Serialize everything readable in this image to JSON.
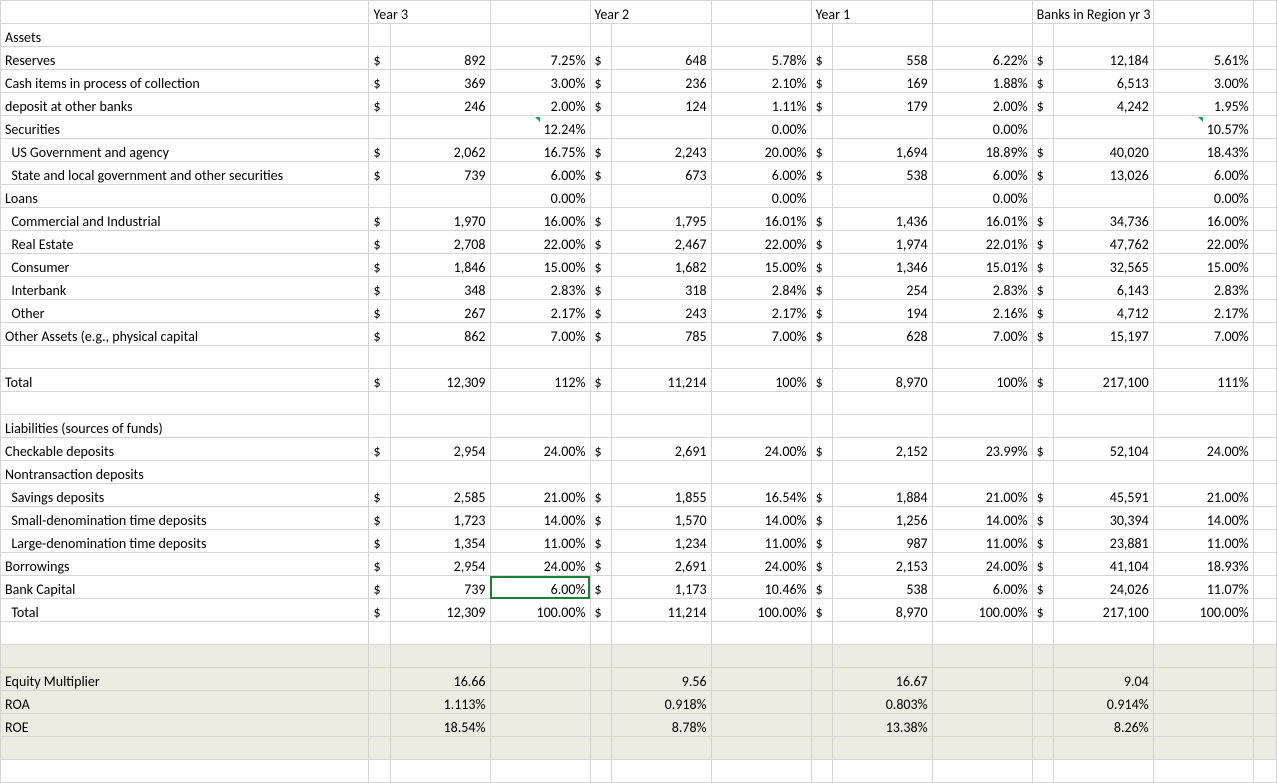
{
  "headers": {
    "year3": "Year 3",
    "year2": "Year 2",
    "year1": "Year 1",
    "region": "Banks in Region yr 3"
  },
  "rows": [
    {
      "label": "Assets",
      "type": "header"
    },
    {
      "label": "Reserves",
      "indent": 0,
      "y3": {
        "c": "$",
        "v": "892",
        "p": "7.25%"
      },
      "y2": {
        "c": "$",
        "v": "648",
        "p": "5.78%"
      },
      "y1": {
        "c": "$",
        "v": "558",
        "p": "6.22%"
      },
      "rg": {
        "c": "$",
        "v": "12,184",
        "p": "5.61%"
      }
    },
    {
      "label": "Cash items in process of collection",
      "indent": 0,
      "y3": {
        "c": "$",
        "v": "369",
        "p": "3.00%"
      },
      "y2": {
        "c": "$",
        "v": "236",
        "p": "2.10%"
      },
      "y1": {
        "c": "$",
        "v": "169",
        "p": "1.88%"
      },
      "rg": {
        "c": "$",
        "v": "6,513",
        "p": "3.00%"
      }
    },
    {
      "label": "deposit at other banks",
      "indent": 0,
      "y3": {
        "c": "$",
        "v": "246",
        "p": "2.00%"
      },
      "y2": {
        "c": "$",
        "v": "124",
        "p": "1.11%"
      },
      "y1": {
        "c": "$",
        "v": "179",
        "p": "2.00%"
      },
      "rg": {
        "c": "$",
        "v": "4,242",
        "p": "1.95%"
      }
    },
    {
      "label": "Securities",
      "indent": 0,
      "y3": {
        "p": "12.24%",
        "tri": true
      },
      "y2": {
        "p": "0.00%"
      },
      "y1": {
        "p": "0.00%"
      },
      "rg": {
        "p": "10.57%",
        "tri": true
      }
    },
    {
      "label": "US Government and agency",
      "indent": 1,
      "y3": {
        "c": "$",
        "v": "2,062",
        "p": "16.75%"
      },
      "y2": {
        "c": "$",
        "v": "2,243",
        "p": "20.00%"
      },
      "y1": {
        "c": "$",
        "v": "1,694",
        "p": "18.89%"
      },
      "rg": {
        "c": "$",
        "v": "40,020",
        "p": "18.43%"
      }
    },
    {
      "label": "State and local government and other securities",
      "indent": 1,
      "y3": {
        "c": "$",
        "v": "739",
        "p": "6.00%"
      },
      "y2": {
        "c": "$",
        "v": "673",
        "p": "6.00%"
      },
      "y1": {
        "c": "$",
        "v": "538",
        "p": "6.00%"
      },
      "rg": {
        "c": "$",
        "v": "13,026",
        "p": "6.00%"
      }
    },
    {
      "label": "Loans",
      "indent": 0,
      "y3": {
        "p": "0.00%"
      },
      "y2": {
        "p": "0.00%"
      },
      "y1": {
        "p": "0.00%"
      },
      "rg": {
        "p": "0.00%"
      }
    },
    {
      "label": "Commercial and Industrial",
      "indent": 1,
      "y3": {
        "c": "$",
        "v": "1,970",
        "p": "16.00%"
      },
      "y2": {
        "c": "$",
        "v": "1,795",
        "p": "16.01%"
      },
      "y1": {
        "c": "$",
        "v": "1,436",
        "p": "16.01%"
      },
      "rg": {
        "c": "$",
        "v": "34,736",
        "p": "16.00%"
      }
    },
    {
      "label": "Real Estate",
      "indent": 1,
      "y3": {
        "c": "$",
        "v": "2,708",
        "p": "22.00%"
      },
      "y2": {
        "c": "$",
        "v": "2,467",
        "p": "22.00%"
      },
      "y1": {
        "c": "$",
        "v": "1,974",
        "p": "22.01%"
      },
      "rg": {
        "c": "$",
        "v": "47,762",
        "p": "22.00%"
      }
    },
    {
      "label": "Consumer",
      "indent": 1,
      "y3": {
        "c": "$",
        "v": "1,846",
        "p": "15.00%"
      },
      "y2": {
        "c": "$",
        "v": "1,682",
        "p": "15.00%"
      },
      "y1": {
        "c": "$",
        "v": "1,346",
        "p": "15.01%"
      },
      "rg": {
        "c": "$",
        "v": "32,565",
        "p": "15.00%"
      }
    },
    {
      "label": "Interbank",
      "indent": 1,
      "y3": {
        "c": "$",
        "v": "348",
        "p": "2.83%"
      },
      "y2": {
        "c": "$",
        "v": "318",
        "p": "2.84%"
      },
      "y1": {
        "c": "$",
        "v": "254",
        "p": "2.83%"
      },
      "rg": {
        "c": "$",
        "v": "6,143",
        "p": "2.83%"
      }
    },
    {
      "label": "Other",
      "indent": 1,
      "y3": {
        "c": "$",
        "v": "267",
        "p": "2.17%"
      },
      "y2": {
        "c": "$",
        "v": "243",
        "p": "2.17%"
      },
      "y1": {
        "c": "$",
        "v": "194",
        "p": "2.16%"
      },
      "rg": {
        "c": "$",
        "v": "4,712",
        "p": "2.17%"
      }
    },
    {
      "label": "Other Assets (e.g., physical capital",
      "indent": 0,
      "y3": {
        "c": "$",
        "v": "862",
        "p": "7.00%"
      },
      "y2": {
        "c": "$",
        "v": "785",
        "p": "7.00%"
      },
      "y1": {
        "c": "$",
        "v": "628",
        "p": "7.00%"
      },
      "rg": {
        "c": "$",
        "v": "15,197",
        "p": "7.00%"
      }
    },
    {
      "label": "",
      "type": "blank"
    },
    {
      "label": "Total",
      "indent": 0,
      "y3": {
        "c": "$",
        "v": "12,309",
        "p": "112%"
      },
      "y2": {
        "c": "$",
        "v": "11,214",
        "p": "100%"
      },
      "y1": {
        "c": "$",
        "v": "8,970",
        "p": "100%"
      },
      "rg": {
        "c": "$",
        "v": "217,100",
        "p": "111%"
      }
    },
    {
      "label": "",
      "type": "blank"
    },
    {
      "label": "Liabilities (sources of funds)",
      "type": "header"
    },
    {
      "label": "Checkable deposits",
      "indent": 0,
      "y3": {
        "c": "$",
        "v": "2,954",
        "p": "24.00%"
      },
      "y2": {
        "c": "$",
        "v": "2,691",
        "p": "24.00%"
      },
      "y1": {
        "c": "$",
        "v": "2,152",
        "p": "23.99%"
      },
      "rg": {
        "c": "$",
        "v": "52,104",
        "p": "24.00%"
      }
    },
    {
      "label": "Nontransaction deposits",
      "type": "header"
    },
    {
      "label": "Savings deposits",
      "indent": 1,
      "y3": {
        "c": "$",
        "v": "2,585",
        "p": "21.00%"
      },
      "y2": {
        "c": "$",
        "v": "1,855",
        "p": "16.54%"
      },
      "y1": {
        "c": "$",
        "v": "1,884",
        "p": "21.00%"
      },
      "rg": {
        "c": "$",
        "v": "45,591",
        "p": "21.00%"
      }
    },
    {
      "label": "Small-denomination time deposits",
      "indent": 1,
      "y3": {
        "c": "$",
        "v": "1,723",
        "p": "14.00%"
      },
      "y2": {
        "c": "$",
        "v": "1,570",
        "p": "14.00%"
      },
      "y1": {
        "c": "$",
        "v": "1,256",
        "p": "14.00%"
      },
      "rg": {
        "c": "$",
        "v": "30,394",
        "p": "14.00%"
      }
    },
    {
      "label": "Large-denomination time deposits",
      "indent": 1,
      "y3": {
        "c": "$",
        "v": "1,354",
        "p": "11.00%"
      },
      "y2": {
        "c": "$",
        "v": "1,234",
        "p": "11.00%"
      },
      "y1": {
        "c": "$",
        "v": "987",
        "p": "11.00%"
      },
      "rg": {
        "c": "$",
        "v": "23,881",
        "p": "11.00%"
      }
    },
    {
      "label": "Borrowings",
      "indent": 0,
      "y3": {
        "c": "$",
        "v": "2,954",
        "p": "24.00%"
      },
      "y2": {
        "c": "$",
        "v": "2,691",
        "p": "24.00%"
      },
      "y1": {
        "c": "$",
        "v": "2,153",
        "p": "24.00%"
      },
      "rg": {
        "c": "$",
        "v": "41,104",
        "p": "18.93%"
      }
    },
    {
      "label": "Bank Capital",
      "indent": 0,
      "selected": true,
      "y3": {
        "c": "$",
        "v": "739",
        "p": "6.00%"
      },
      "y2": {
        "c": "$",
        "v": "1,173",
        "p": "10.46%"
      },
      "y1": {
        "c": "$",
        "v": "538",
        "p": "6.00%"
      },
      "rg": {
        "c": "$",
        "v": "24,026",
        "p": "11.07%"
      }
    },
    {
      "label": "Total",
      "indent": 1,
      "y3": {
        "c": "$",
        "v": "12,309",
        "p": "100.00%"
      },
      "y2": {
        "c": "$",
        "v": "11,214",
        "p": "100.00%"
      },
      "y1": {
        "c": "$",
        "v": "8,970",
        "p": "100.00%"
      },
      "rg": {
        "c": "$",
        "v": "217,100",
        "p": "100.00%"
      }
    },
    {
      "label": "",
      "type": "blank"
    },
    {
      "label": "",
      "type": "blank",
      "shaded": true
    },
    {
      "label": "Equity Multiplier",
      "indent": 0,
      "shaded": true,
      "metric": true,
      "y3": {
        "v": "16.66"
      },
      "y2": {
        "v": "9.56"
      },
      "y1": {
        "v": "16.67"
      },
      "rg": {
        "v": "9.04"
      }
    },
    {
      "label": "ROA",
      "indent": 0,
      "shaded": true,
      "metric": true,
      "y3": {
        "v": "1.113%"
      },
      "y2": {
        "v": "0.918%"
      },
      "y1": {
        "v": "0.803%"
      },
      "rg": {
        "v": "0.914%"
      }
    },
    {
      "label": "ROE",
      "indent": 0,
      "shaded": true,
      "metric": true,
      "y3": {
        "v": "18.54%"
      },
      "y2": {
        "v": "8.78%"
      },
      "y1": {
        "v": "13.38%"
      },
      "rg": {
        "v": "8.26%"
      }
    },
    {
      "label": "",
      "type": "blank",
      "shaded": true
    },
    {
      "label": "",
      "type": "blank"
    }
  ]
}
